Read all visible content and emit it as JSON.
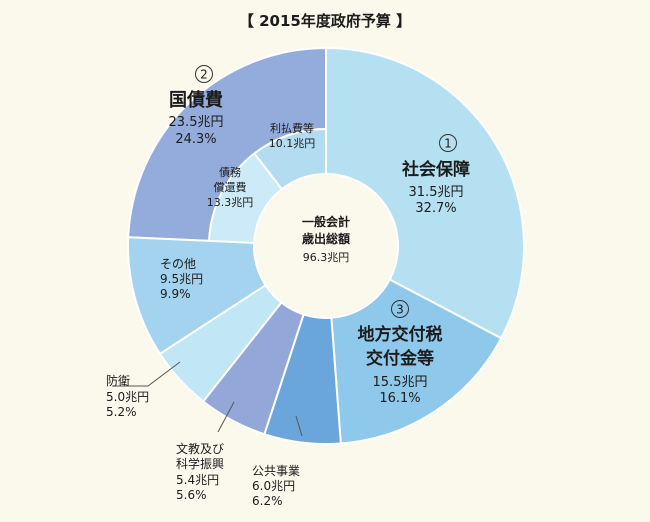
{
  "chart_data": {
    "type": "pie",
    "title": "【 2015年度政府予算 】",
    "center": {
      "line1": "一般会計",
      "line2": "歳出総額",
      "total": "96.3兆円"
    },
    "unit": "兆円",
    "slices": [
      {
        "id": "social-security",
        "num": "1",
        "label": [
          "社会保障"
        ],
        "value": 31.5,
        "value_text": "31.5兆円",
        "pct": 32.7,
        "pct_text": "32.7%",
        "color": "#b5e0f2"
      },
      {
        "id": "local-tax",
        "num": "3",
        "label": [
          "地方交付税",
          "交付金等"
        ],
        "value": 15.5,
        "value_text": "15.5兆円",
        "pct": 16.1,
        "pct_text": "16.1%",
        "color": "#8ec8ea"
      },
      {
        "id": "public-works",
        "label": [
          "公共事業"
        ],
        "value": 6.0,
        "value_text": "6.0兆円",
        "pct": 6.2,
        "pct_text": "6.2%",
        "color": "#6aa6dc"
      },
      {
        "id": "education",
        "label": [
          "文教及び",
          "科学振興"
        ],
        "value": 5.4,
        "value_text": "5.4兆円",
        "pct": 5.6,
        "pct_text": "5.6%",
        "color": "#93a8d9"
      },
      {
        "id": "defense",
        "label": [
          "防衛"
        ],
        "value": 5.0,
        "value_text": "5.0兆円",
        "pct": 5.2,
        "pct_text": "5.2%",
        "color": "#c1e6f6"
      },
      {
        "id": "other",
        "label": [
          "その他"
        ],
        "value": 9.5,
        "value_text": "9.5兆円",
        "pct": 9.9,
        "pct_text": "9.9%",
        "color": "#a3d3ee"
      },
      {
        "id": "debt-redemption",
        "group": "debt",
        "label": [
          "債務",
          "償還費"
        ],
        "value": 13.3,
        "value_text": "13.3兆円",
        "color": "#cceaf7"
      },
      {
        "id": "interest",
        "group": "debt",
        "label": [
          "利払費等"
        ],
        "value": 10.1,
        "value_text": "10.1兆円",
        "color": "#b3dcf1"
      }
    ],
    "groups": [
      {
        "id": "debt",
        "num": "2",
        "label": "国債費",
        "value_text": "23.5兆円",
        "pct_text": "24.3%",
        "color": "#94acdc"
      }
    ]
  }
}
